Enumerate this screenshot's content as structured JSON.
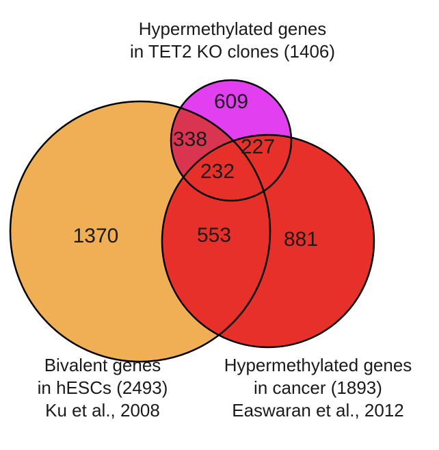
{
  "sets": [
    {
      "lines": [
        "Hypermethylated genes",
        "in TET2 KO clones (1406)"
      ]
    },
    {
      "lines": [
        "Bivalent genes",
        "in hESCs (2493)",
        "Ku et al., 2008"
      ]
    },
    {
      "lines": [
        "Hypermethylated genes",
        "in cancer (1893)",
        "Easwaran et al., 2012"
      ]
    }
  ],
  "regions": [
    609,
    338,
    227,
    232,
    1370,
    553,
    881
  ]
}
